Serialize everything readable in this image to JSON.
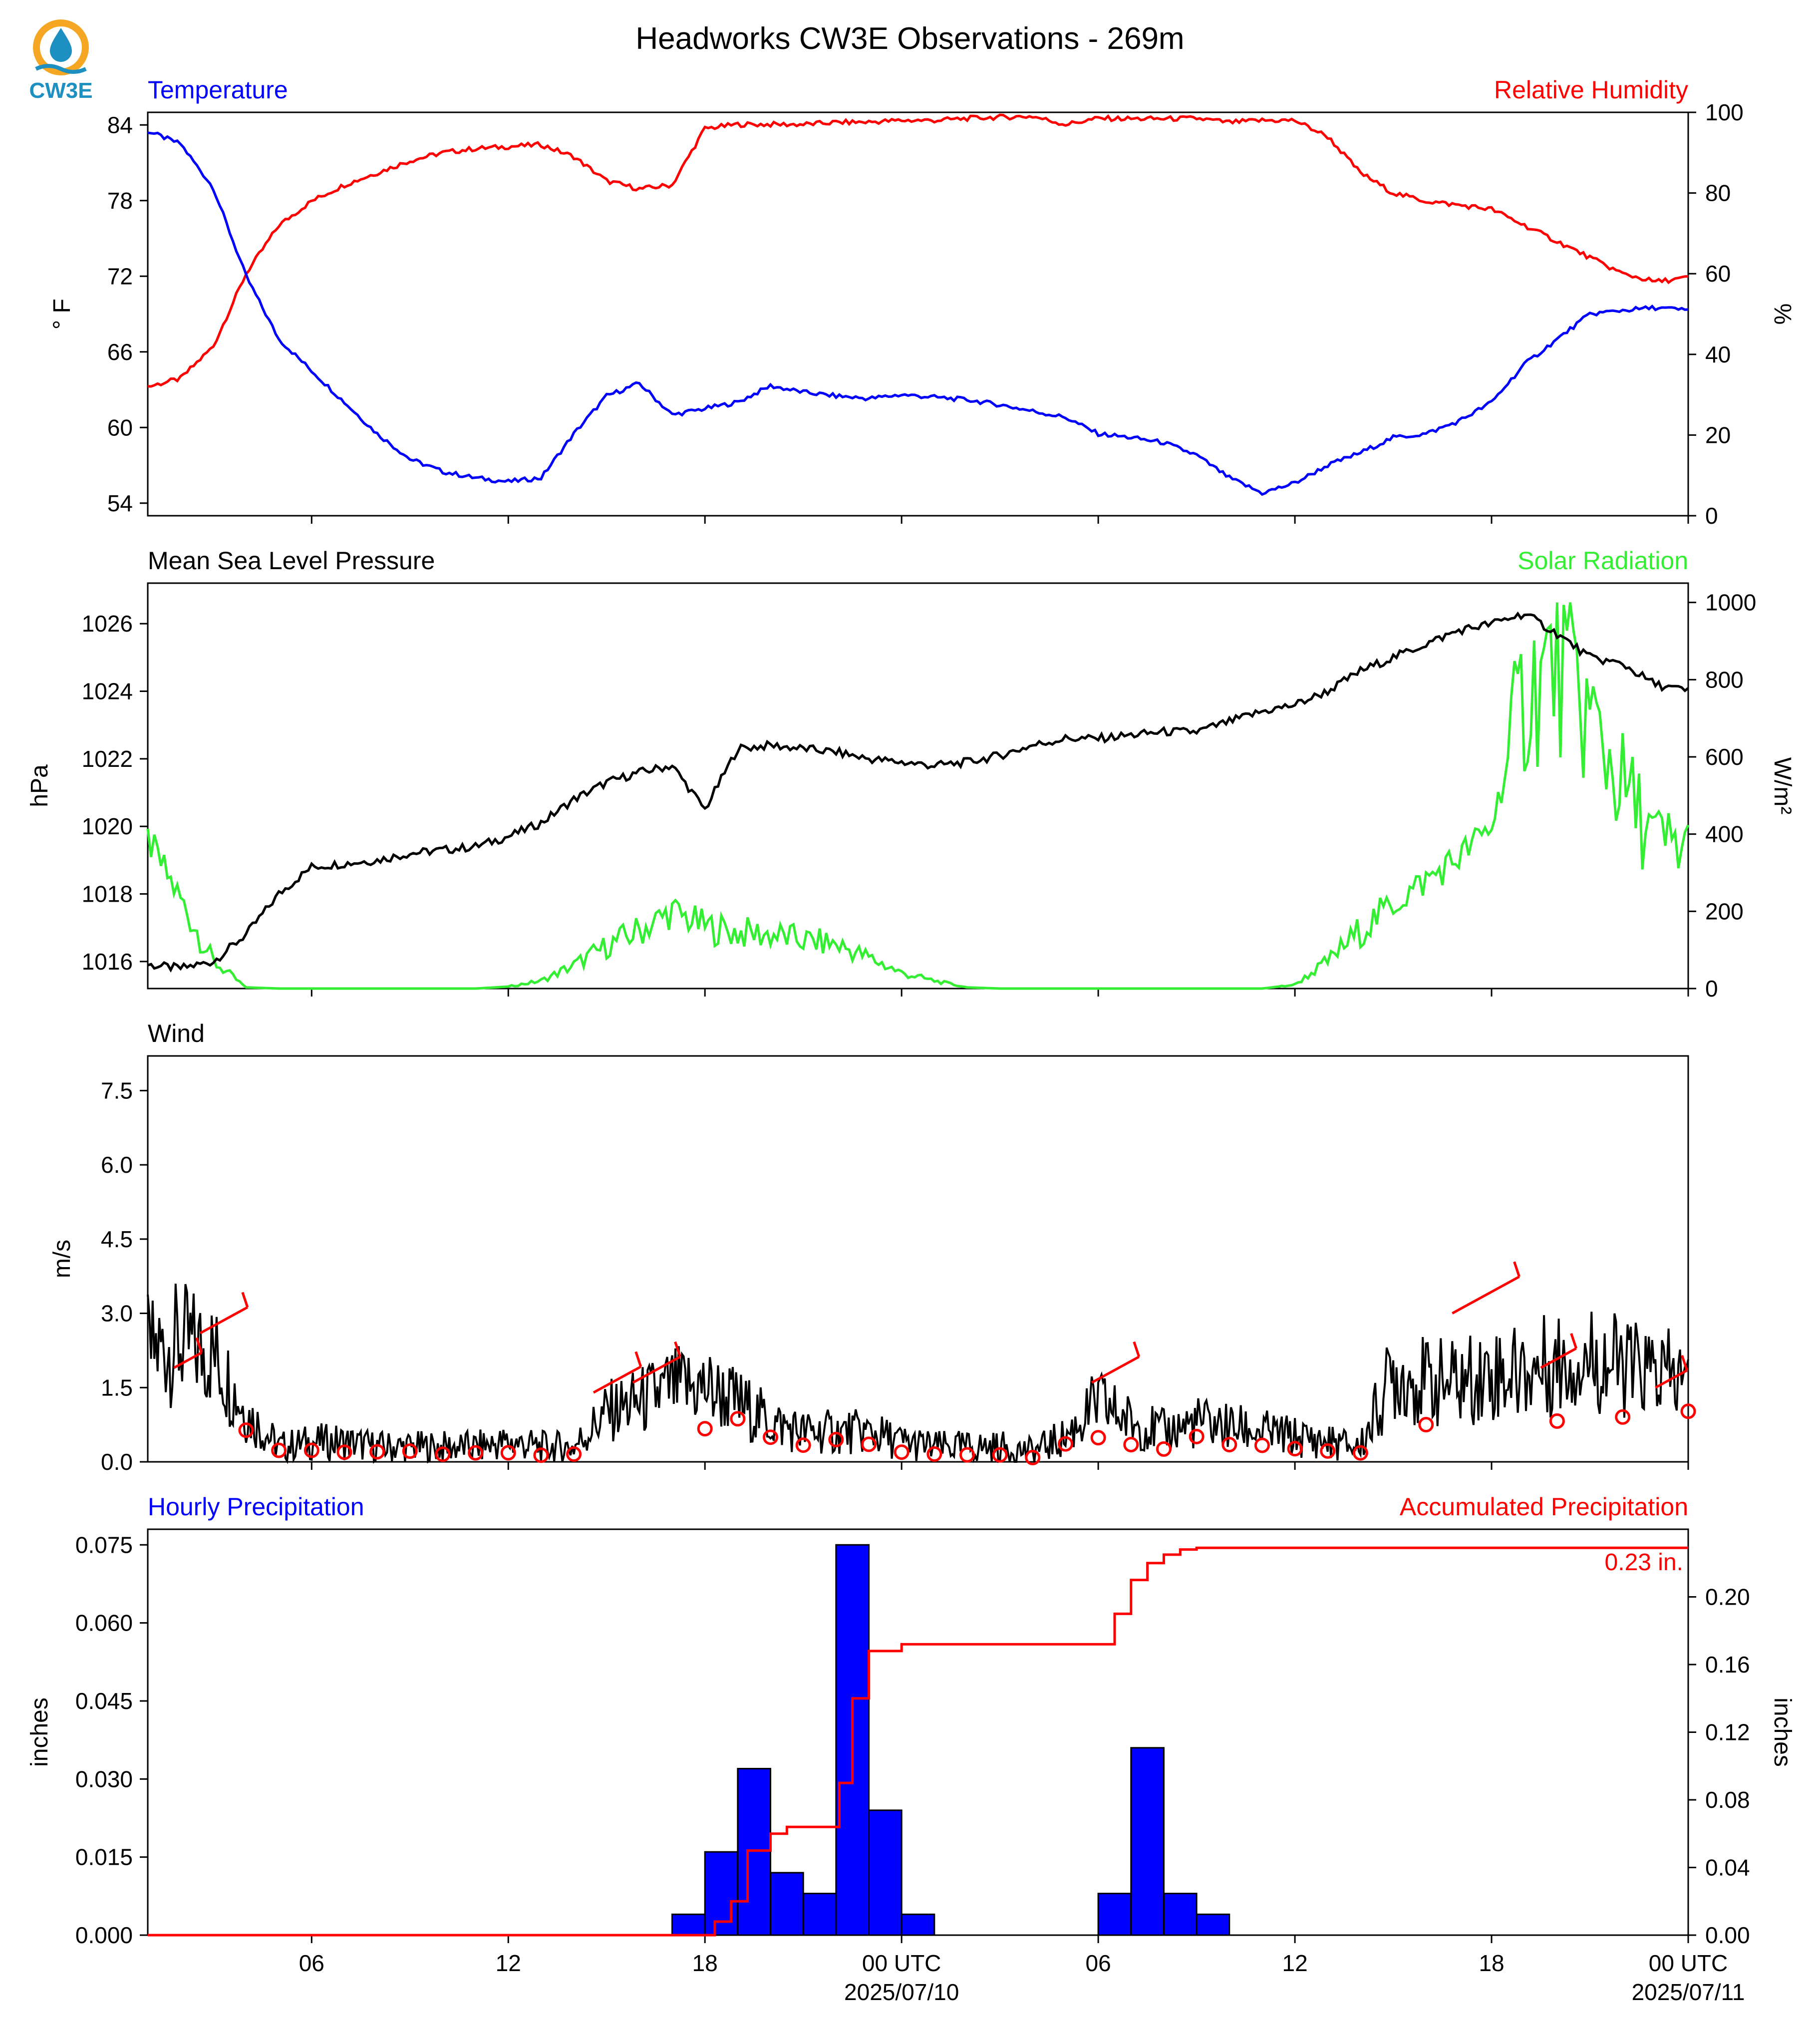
{
  "title": "Headworks CW3E Observations - 269m",
  "logo": {
    "text": "CW3E",
    "colors": {
      "ring": "#f5a623",
      "drop": "#1d8fc0",
      "waves": "#1d8fc0",
      "text": "#1d8fc0"
    }
  },
  "x_axis": {
    "range_hours": [
      0,
      47
    ],
    "ticks": [
      {
        "h": 5,
        "label": "06"
      },
      {
        "h": 11,
        "label": "12"
      },
      {
        "h": 17,
        "label": "18"
      },
      {
        "h": 23,
        "label": "00 UTC",
        "date": "2025/07/10"
      },
      {
        "h": 29,
        "label": "06"
      },
      {
        "h": 35,
        "label": "12"
      },
      {
        "h": 41,
        "label": "18"
      },
      {
        "h": 47,
        "label": "00 UTC",
        "date": "2025/07/11"
      }
    ]
  },
  "panels": {
    "temp_rh": {
      "left_title": "Temperature",
      "right_title": "Relative Humidity",
      "left_unit": "° F",
      "right_unit": "%",
      "left_color": "#0000ff",
      "right_color": "#ff0000",
      "left_range": [
        53,
        85
      ],
      "right_range": [
        0,
        100
      ],
      "left_ticks": [
        "54",
        "60",
        "66",
        "72",
        "78",
        "84"
      ],
      "right_ticks": [
        "0",
        "20",
        "40",
        "60",
        "80",
        "100"
      ]
    },
    "pressure_solar": {
      "left_title": "Mean Sea Level Pressure",
      "right_title": "Solar Radiation",
      "left_unit": "hPa",
      "right_unit": "W/m²",
      "left_color": "#000000",
      "right_color": "#33ee33",
      "left_range": [
        1015.2,
        1027.2
      ],
      "right_range": [
        0,
        1050
      ],
      "left_ticks": [
        "1016",
        "1018",
        "1020",
        "1022",
        "1024",
        "1026"
      ],
      "right_ticks": [
        "0",
        "200",
        "400",
        "600",
        "800",
        "1000"
      ]
    },
    "wind": {
      "left_title": "Wind",
      "left_unit": "m/s",
      "line_color": "#000000",
      "barb_color": "#ff0000",
      "left_range": [
        0,
        8.2
      ],
      "left_ticks": [
        "0.0",
        "1.5",
        "3.0",
        "4.5",
        "6.0",
        "7.5"
      ]
    },
    "precip": {
      "left_title": "Hourly Precipitation",
      "right_title": "Accumulated Precipitation",
      "left_unit": "inches",
      "right_unit": "inches",
      "left_color": "#0000ff",
      "right_color": "#ff0000",
      "left_range": [
        0,
        0.078
      ],
      "right_range": [
        0,
        0.24
      ],
      "left_ticks": [
        "0.000",
        "0.015",
        "0.030",
        "0.045",
        "0.060",
        "0.075"
      ],
      "right_ticks": [
        "0.00",
        "0.04",
        "0.08",
        "0.12",
        "0.16",
        "0.20"
      ],
      "total_label": "0.23 in."
    }
  },
  "chart_data": [
    {
      "type": "line",
      "title": "Temperature",
      "ylabel": "° F",
      "ylim": [
        53,
        85
      ],
      "series": [
        {
          "name": "Temperature",
          "x": [
            0,
            1,
            2,
            3,
            4,
            5,
            6,
            7,
            8,
            9,
            10,
            11,
            12,
            13,
            14,
            15,
            16,
            17,
            18,
            19,
            20,
            21,
            22,
            23,
            24,
            25,
            26,
            27,
            28,
            29,
            30,
            31,
            32,
            33,
            34,
            35,
            36,
            37,
            38,
            39,
            40,
            41,
            42,
            43,
            44,
            45,
            46,
            47
          ],
          "values": [
            83.5,
            82.5,
            79,
            72,
            67,
            64.5,
            62,
            59.5,
            57.5,
            56.5,
            56,
            55.7,
            56,
            59.5,
            62.5,
            63.5,
            61,
            61.5,
            62,
            63.3,
            62.8,
            62.5,
            62.3,
            62.6,
            62.4,
            62.2,
            61.8,
            61.3,
            60.8,
            59.5,
            59.2,
            58.8,
            57.8,
            56,
            54.8,
            55.6,
            57,
            58,
            59.2,
            59.5,
            60.5,
            62,
            65,
            67,
            69,
            69.3,
            69.5,
            69.3
          ]
        }
      ]
    },
    {
      "type": "line",
      "title": "Relative Humidity",
      "ylabel": "%",
      "ylim": [
        0,
        100
      ],
      "series": [
        {
          "name": "Relative Humidity",
          "x": [
            0,
            1,
            2,
            3,
            4,
            5,
            6,
            7,
            8,
            9,
            10,
            11,
            12,
            13,
            14,
            15,
            16,
            17,
            18,
            19,
            20,
            21,
            22,
            23,
            24,
            25,
            26,
            27,
            28,
            29,
            30,
            31,
            32,
            33,
            34,
            35,
            36,
            37,
            38,
            39,
            40,
            41,
            42,
            43,
            44,
            45,
            46,
            47
          ],
          "values": [
            32,
            34,
            42,
            60,
            72,
            78,
            82,
            85,
            88,
            90,
            91,
            91.5,
            92,
            89,
            83,
            81,
            82,
            96,
            97,
            97,
            97,
            97.5,
            97.6,
            98,
            98,
            98.5,
            98.8,
            99,
            97,
            98.5,
            98.4,
            98.4,
            98.5,
            97.5,
            98,
            98,
            94,
            85,
            80,
            78,
            77,
            76,
            72,
            68,
            64,
            60,
            58,
            59
          ]
        }
      ]
    },
    {
      "type": "line",
      "title": "Mean Sea Level Pressure",
      "ylabel": "hPa",
      "ylim": [
        1015.2,
        1027.2
      ],
      "series": [
        {
          "name": "Mean Sea Level Pressure",
          "x": [
            0,
            1,
            2,
            3,
            4,
            5,
            6,
            7,
            8,
            9,
            10,
            11,
            12,
            13,
            14,
            15,
            16,
            17,
            18,
            19,
            20,
            21,
            22,
            23,
            24,
            25,
            26,
            27,
            28,
            29,
            30,
            31,
            32,
            33,
            34,
            35,
            36,
            37,
            38,
            39,
            40,
            41,
            42,
            43,
            44,
            45,
            46,
            47
          ],
          "values": [
            1015.9,
            1015.8,
            1016,
            1016.8,
            1018,
            1018.8,
            1018.9,
            1019,
            1019.2,
            1019.3,
            1019.4,
            1019.7,
            1020.1,
            1020.8,
            1021.3,
            1021.6,
            1021.8,
            1020.5,
            1022.3,
            1022.4,
            1022.3,
            1022.2,
            1022,
            1021.9,
            1021.8,
            1021.9,
            1022.1,
            1022.4,
            1022.6,
            1022.6,
            1022.7,
            1022.8,
            1022.8,
            1023.1,
            1023.4,
            1023.6,
            1024,
            1024.6,
            1025,
            1025.4,
            1025.8,
            1026,
            1026.3,
            1025.7,
            1025,
            1024.8,
            1024.2,
            1024
          ]
        }
      ]
    },
    {
      "type": "line",
      "title": "Solar Radiation",
      "ylabel": "W/m²",
      "ylim": [
        0,
        1050
      ],
      "series": [
        {
          "name": "Solar Radiation",
          "x": [
            0,
            1,
            2,
            3,
            4,
            5,
            6,
            7,
            8,
            9,
            10,
            11,
            12,
            13,
            14,
            15,
            16,
            17,
            18,
            19,
            20,
            21,
            22,
            23,
            24,
            25,
            26,
            27,
            28,
            29,
            30,
            31,
            32,
            33,
            34,
            35,
            36,
            37,
            38,
            39,
            40,
            41,
            42,
            43,
            44,
            45,
            46,
            47
          ],
          "values": [
            385,
            230,
            70,
            3,
            0,
            0,
            0,
            0,
            0,
            0,
            0,
            5,
            20,
            60,
            110,
            150,
            200,
            160,
            145,
            140,
            125,
            115,
            80,
            40,
            20,
            3,
            0,
            0,
            0,
            0,
            0,
            0,
            0,
            0,
            0,
            10,
            70,
            150,
            220,
            280,
            340,
            420,
            760,
            850,
            700,
            520,
            380,
            360
          ]
        }
      ]
    },
    {
      "type": "line",
      "title": "Wind",
      "ylabel": "m/s",
      "ylim": [
        0,
        8.2
      ],
      "series": [
        {
          "name": "Wind",
          "x": [
            0,
            1,
            2,
            3,
            4,
            5,
            6,
            7,
            8,
            9,
            10,
            11,
            12,
            13,
            14,
            15,
            16,
            17,
            18,
            19,
            20,
            21,
            22,
            23,
            24,
            25,
            26,
            27,
            28,
            29,
            30,
            31,
            32,
            33,
            34,
            35,
            36,
            37,
            38,
            39,
            40,
            41,
            42,
            43,
            44,
            45,
            46,
            47
          ],
          "values": [
            2.2,
            2.4,
            2.2,
            1.0,
            0.3,
            0.4,
            0.4,
            0.3,
            0.3,
            0.3,
            0.3,
            0.4,
            0.3,
            0.3,
            1.0,
            1.2,
            1.5,
            1.5,
            1.2,
            0.8,
            0.6,
            0.6,
            0.6,
            0.4,
            0.3,
            0.3,
            0.3,
            0.2,
            0.5,
            1.2,
            0.8,
            0.6,
            0.8,
            0.7,
            0.6,
            0.5,
            0.4,
            0.3,
            1.8,
            1.6,
            1.6,
            1.8,
            1.8,
            2.0,
            2.1,
            1.9,
            1.8,
            1.6
          ]
        }
      ]
    },
    {
      "type": "bar",
      "title": "Hourly Precipitation",
      "ylabel": "inches",
      "ylim": [
        0,
        0.078
      ],
      "series": [
        {
          "name": "Hourly Precipitation",
          "x": [
            16,
            17,
            18,
            19,
            20,
            21,
            22,
            23,
            24,
            29,
            30,
            31,
            32
          ],
          "values": [
            0.004,
            0.016,
            0.032,
            0.012,
            0.008,
            0.075,
            0.024,
            0.004,
            0,
            0.008,
            0.036,
            0.008,
            0.004
          ]
        }
      ]
    },
    {
      "type": "line",
      "title": "Accumulated Precipitation",
      "ylabel": "inches",
      "ylim": [
        0,
        0.24
      ],
      "series": [
        {
          "name": "Accumulated Precipitation",
          "x": [
            0,
            16,
            16.9,
            17.3,
            17.8,
            18.3,
            19,
            19.5,
            20,
            20.4,
            21.1,
            21.5,
            22,
            22.5,
            23,
            29,
            29.5,
            30,
            30.5,
            31,
            31.5,
            32,
            47
          ],
          "values": [
            0,
            0,
            0,
            0.008,
            0.02,
            0.05,
            0.06,
            0.064,
            0.064,
            0.064,
            0.09,
            0.14,
            0.168,
            0.168,
            0.172,
            0.172,
            0.19,
            0.21,
            0.22,
            0.225,
            0.228,
            0.229,
            0.229
          ]
        }
      ]
    }
  ]
}
